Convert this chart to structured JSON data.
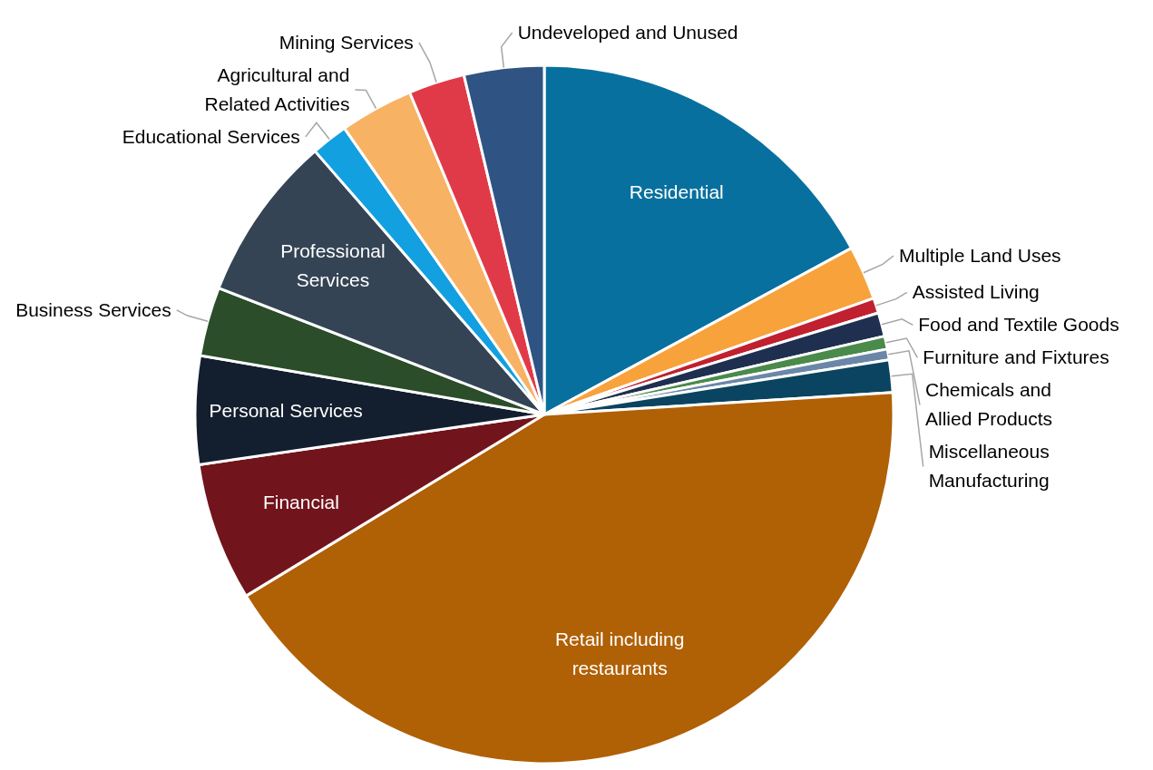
{
  "chart_data": {
    "type": "pie",
    "categories": [
      "Residential",
      "Multiple Land Uses",
      "Assisted Living",
      "Food and Textile Goods",
      "Furniture and Fixtures",
      "Chemicals and Allied Products",
      "Miscellaneous Manufacturing",
      "Retail including restaurants",
      "Financial",
      "Personal Services",
      "Business Services",
      "Professional Services",
      "Educational Services",
      "Agricultural and Related Activities",
      "Mining Services",
      "Undeveloped and Unused"
    ],
    "values": [
      17.1,
      2.5,
      0.7,
      1.1,
      0.6,
      0.5,
      1.5,
      42.3,
      6.4,
      5.0,
      3.2,
      7.7,
      1.7,
      3.4,
      2.6,
      3.7
    ],
    "colors": [
      "#08709e",
      "#f8a23c",
      "#c0202f",
      "#1f2f4f",
      "#4a8a4a",
      "#6a87a8",
      "#0a4460",
      "#b06005",
      "#72141c",
      "#131e2e",
      "#2b4d2a",
      "#344455",
      "#12a0e0",
      "#f8b264",
      "#e03a48",
      "#2f5484"
    ]
  }
}
